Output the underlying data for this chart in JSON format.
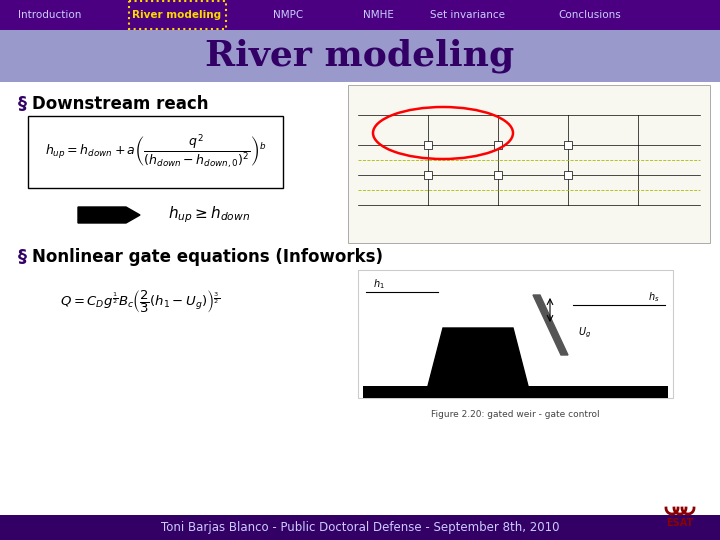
{
  "nav_bg": "#4a0080",
  "nav_items": [
    "Introduction",
    "River modeling",
    "NMPC",
    "NMHE",
    "Set invariance",
    "Conclusions"
  ],
  "nav_active": "River modeling",
  "nav_active_color": "#FFD700",
  "nav_text_color": "#CCCCFF",
  "title_bg": "#9999CC",
  "title_text": "River modeling",
  "title_color": "#330066",
  "slide_bg": "#FFFFFF",
  "bullet_color": "#330066",
  "bullet1": "Downstream reach",
  "bullet2": "Nonlinear gate equations (Infoworks)",
  "footer_bg": "#330066",
  "footer_text": "Toni Barjas Blanco - Public Doctoral Defense - September 8th, 2010",
  "footer_text_color": "#CCCCFF"
}
